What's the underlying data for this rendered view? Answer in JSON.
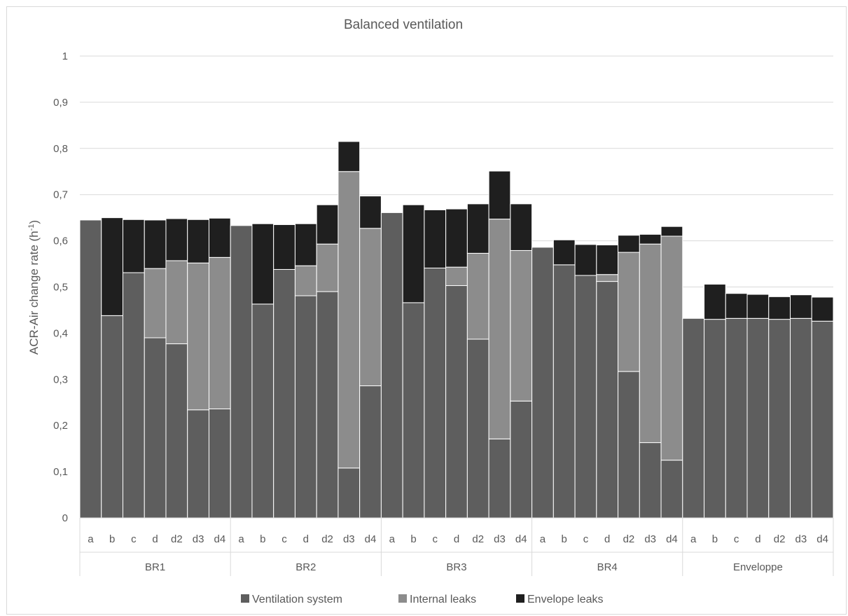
{
  "chart_data": {
    "type": "bar",
    "stacked": true,
    "title": "Balanced ventilation",
    "ylabel": "ACR-Air change rate (h",
    "ylabel_sup": "-1",
    "ylabel_close": ")",
    "ylim": [
      0,
      1
    ],
    "y_ticks": [
      "0",
      "0,1",
      "0,2",
      "0,3",
      "0,4",
      "0,5",
      "0,6",
      "0,7",
      "0,8",
      "0,9",
      "1"
    ],
    "grid": true,
    "legend_position": "bottom",
    "groups": [
      {
        "name": "BR1",
        "categories": [
          "a",
          "b",
          "c",
          "d",
          "d2",
          "d3",
          "d4"
        ]
      },
      {
        "name": "BR2",
        "categories": [
          "a",
          "b",
          "c",
          "d",
          "d2",
          "d3",
          "d4"
        ]
      },
      {
        "name": "BR3",
        "categories": [
          "a",
          "b",
          "c",
          "d",
          "d2",
          "d3",
          "d4"
        ]
      },
      {
        "name": "BR4",
        "categories": [
          "a",
          "b",
          "c",
          "d",
          "d2",
          "d3",
          "d4"
        ]
      },
      {
        "name": "Enveloppe",
        "categories": [
          "a",
          "b",
          "c",
          "d",
          "d2",
          "d3",
          "d4"
        ]
      }
    ],
    "series": [
      {
        "name": "Ventilation system",
        "color": "#5e5e5e",
        "values": [
          0.645,
          0.438,
          0.531,
          0.39,
          0.377,
          0.234,
          0.236,
          0.633,
          0.463,
          0.538,
          0.481,
          0.49,
          0.108,
          0.286,
          0.661,
          0.466,
          0.541,
          0.503,
          0.387,
          0.171,
          0.253,
          0.586,
          0.548,
          0.525,
          0.512,
          0.317,
          0.163,
          0.125,
          0.432,
          0.43,
          0.432,
          0.432,
          0.43,
          0.432,
          0.426
        ]
      },
      {
        "name": "Internal leaks",
        "color": "#8c8c8c",
        "values": [
          0,
          0,
          0,
          0.15,
          0.18,
          0.318,
          0.328,
          0,
          0,
          0,
          0.065,
          0.103,
          0.642,
          0.341,
          0,
          0,
          0,
          0.04,
          0.186,
          0.476,
          0.326,
          0,
          0,
          0,
          0.015,
          0.258,
          0.43,
          0.485,
          0,
          0,
          0,
          0,
          0,
          0,
          0
        ]
      },
      {
        "name": "Envelope leaks",
        "color": "#1f1f1f",
        "values": [
          0,
          0.212,
          0.115,
          0.105,
          0.091,
          0.094,
          0.085,
          0,
          0.174,
          0.097,
          0.091,
          0.085,
          0.065,
          0.07,
          0,
          0.212,
          0.126,
          0.126,
          0.107,
          0.104,
          0.101,
          0,
          0.054,
          0.067,
          0.064,
          0.037,
          0.021,
          0.021,
          0,
          0.076,
          0.054,
          0.052,
          0.049,
          0.051,
          0.052
        ]
      }
    ]
  }
}
